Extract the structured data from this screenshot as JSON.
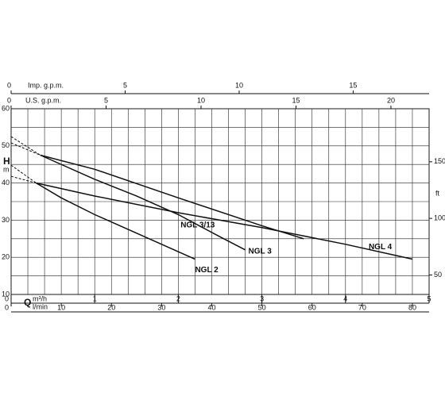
{
  "chart_data": {
    "type": "line",
    "x_label": "Q",
    "x_unit": "m³/h",
    "y_label": "H",
    "y_unit": "m",
    "xlim": [
      0,
      5
    ],
    "xticks": [
      0,
      1,
      2,
      3,
      4,
      5
    ],
    "ylim": [
      10,
      60
    ],
    "yticks": [
      10,
      20,
      30,
      40,
      50,
      60
    ],
    "x_grid": [
      0,
      0.2,
      0.4,
      0.6,
      0.8,
      1,
      1.2,
      1.4,
      1.6,
      1.8,
      2,
      2.2,
      2.4,
      2.6,
      2.8,
      3,
      3.2,
      3.4,
      3.6,
      3.8,
      4,
      4.2,
      4.4,
      4.6,
      4.8,
      5
    ],
    "y_grid": [
      10,
      15,
      20,
      25,
      30,
      35,
      40,
      45,
      50,
      55,
      60
    ],
    "grid": true,
    "lmin_label": "l/min",
    "lmin_lim": [
      0,
      83.33
    ],
    "lmin_ticks": [
      0,
      10,
      20,
      30,
      40,
      50,
      60,
      70,
      80
    ],
    "imp_label": "Imp. g.p.m.",
    "imp_lim": [
      0,
      18.33
    ],
    "imp_ticks": [
      0,
      5,
      10,
      15
    ],
    "us_label": "U.S. g.p.m.",
    "us_lim": [
      0,
      22.01
    ],
    "us_ticks": [
      0,
      5,
      10,
      15,
      20
    ],
    "ft_label": "ft",
    "ft_lim": [
      32.81,
      196.85
    ],
    "ft_ticks": [
      50,
      100,
      150
    ],
    "series": [
      {
        "name": "NGL 2",
        "color": "#111111",
        "x": [
          0.3,
          0.6,
          1,
          1.4,
          1.8,
          2.2
        ],
        "values": [
          40,
          36,
          31.5,
          27.5,
          23.5,
          19.5
        ],
        "dash_x": [
          0,
          0.3
        ],
        "dash_values": [
          44.8,
          40
        ]
      },
      {
        "name": "NGL 3",
        "color": "#111111",
        "x": [
          0.35,
          1,
          1.5,
          2,
          2.5,
          2.8
        ],
        "values": [
          47.5,
          41,
          36.5,
          31.5,
          25.5,
          22
        ],
        "dash_x": [
          0,
          0.35
        ],
        "dash_values": [
          52.5,
          47.5
        ]
      },
      {
        "name": "NGL 3/13",
        "color": "#111111",
        "x": [
          0.35,
          1,
          2,
          3,
          3.5
        ],
        "values": [
          47.5,
          43.7,
          36,
          28.5,
          25
        ],
        "dash_x": [
          0,
          0.35
        ],
        "dash_values": [
          50.8,
          47.5
        ]
      },
      {
        "name": "NGL 4",
        "color": "#111111",
        "x": [
          0.3,
          1,
          2,
          3,
          4,
          4.8
        ],
        "values": [
          40,
          36.5,
          32,
          28,
          23.5,
          19.5
        ],
        "dash_x": [
          0,
          0.3
        ],
        "dash_values": [
          41.8,
          40
        ]
      }
    ]
  }
}
